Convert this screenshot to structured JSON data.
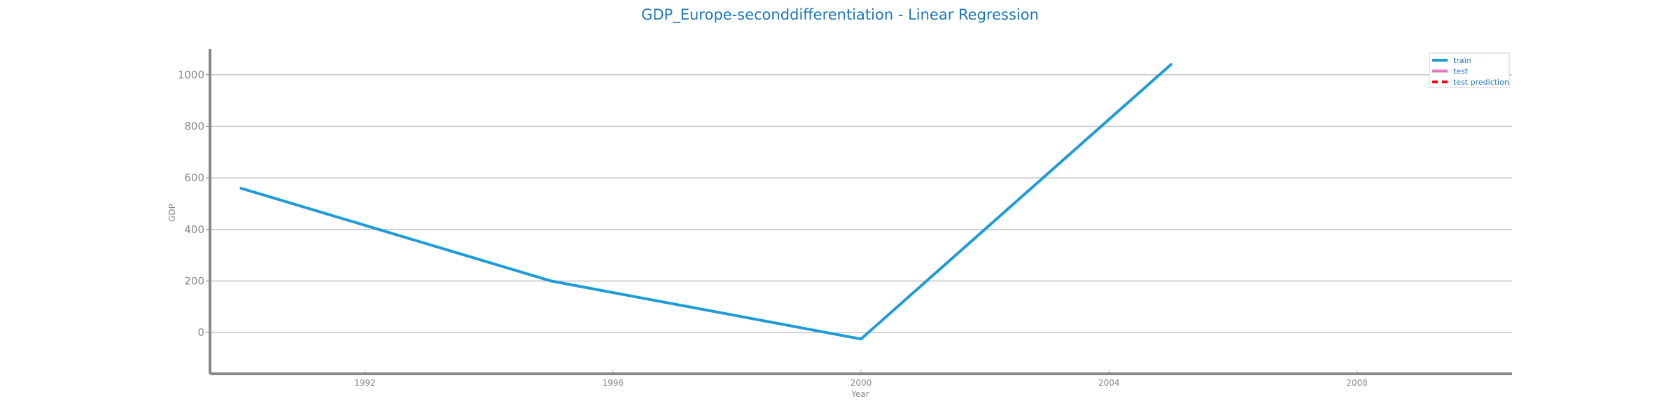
{
  "chart_data": {
    "type": "line",
    "title": "GDP_Europe-seconddifferentiation - Linear Regression",
    "xlabel": "Year",
    "ylabel": "GDP",
    "xlim": [
      1989.5,
      2010.5
    ],
    "ylim": [
      -160,
      1100
    ],
    "xticks": [
      1992,
      1996,
      2000,
      2004,
      2008
    ],
    "yticks": [
      0,
      200,
      400,
      600,
      800,
      1000
    ],
    "grid": "horizontal",
    "legend_position": "top-right",
    "series": [
      {
        "name": "train",
        "color": "#1f9bd7",
        "style": "solid",
        "points": [
          {
            "x": 1990,
            "y": 560
          },
          {
            "x": 1995,
            "y": 200
          },
          {
            "x": 2000,
            "y": -25
          },
          {
            "x": 2005,
            "y": 1040
          }
        ]
      },
      {
        "name": "test",
        "color": "#e377c2",
        "style": "solid",
        "points": []
      },
      {
        "name": "test prediction",
        "color": "#ff0000",
        "style": "dashed",
        "points": []
      }
    ]
  }
}
